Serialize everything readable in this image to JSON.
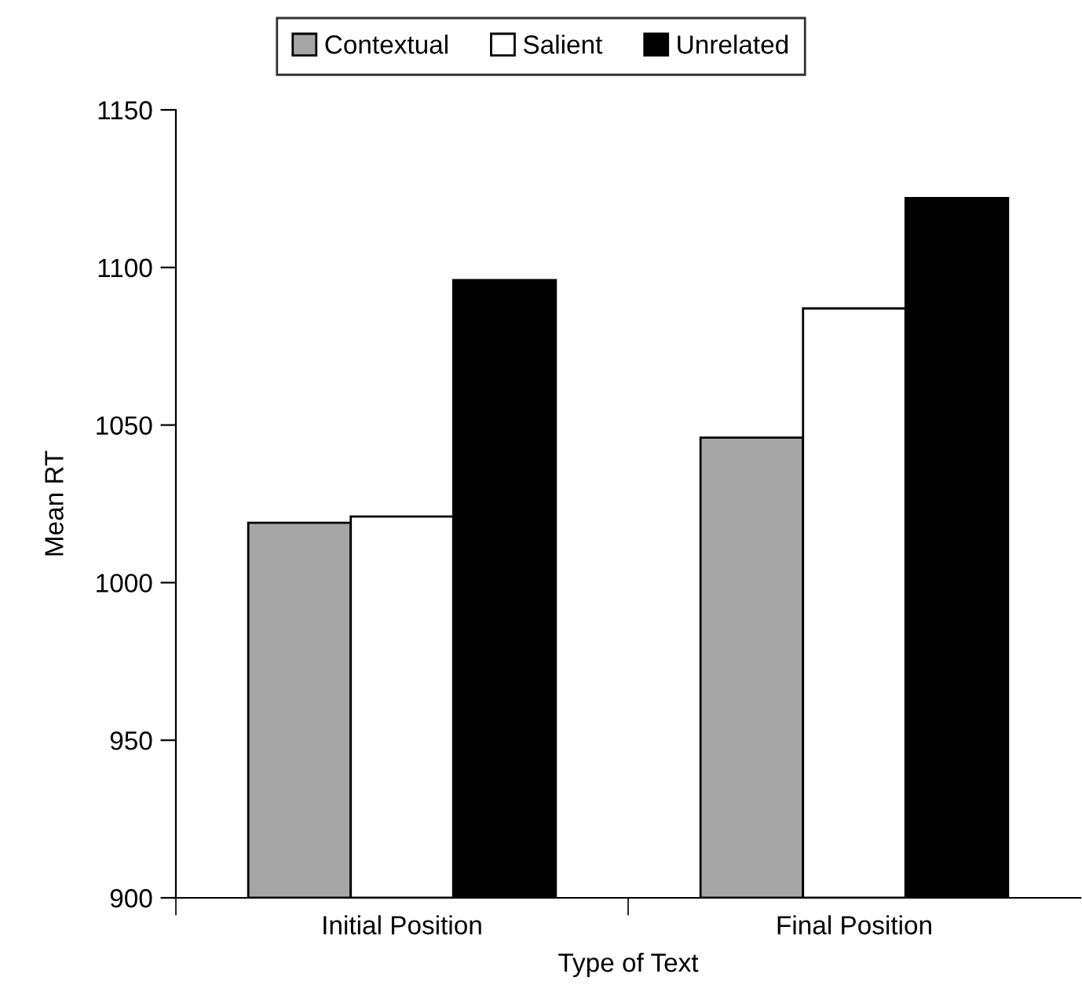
{
  "chart_data": {
    "type": "bar",
    "xlabel": "Type of Text",
    "ylabel": "Mean RT",
    "categories": [
      "Initial Position",
      "Final Position"
    ],
    "series": [
      {
        "name": "Contextual",
        "color": "#a6a6a6",
        "values": [
          1019,
          1046
        ]
      },
      {
        "name": "Salient",
        "color": "#ffffff",
        "values": [
          1021,
          1087
        ]
      },
      {
        "name": "Unrelated",
        "color": "#000000",
        "values": [
          1096,
          1122
        ]
      }
    ],
    "ylim": [
      900,
      1150
    ],
    "yticks": [
      900,
      950,
      1000,
      1050,
      1100,
      1150
    ],
    "grid": false,
    "legend": "top"
  }
}
